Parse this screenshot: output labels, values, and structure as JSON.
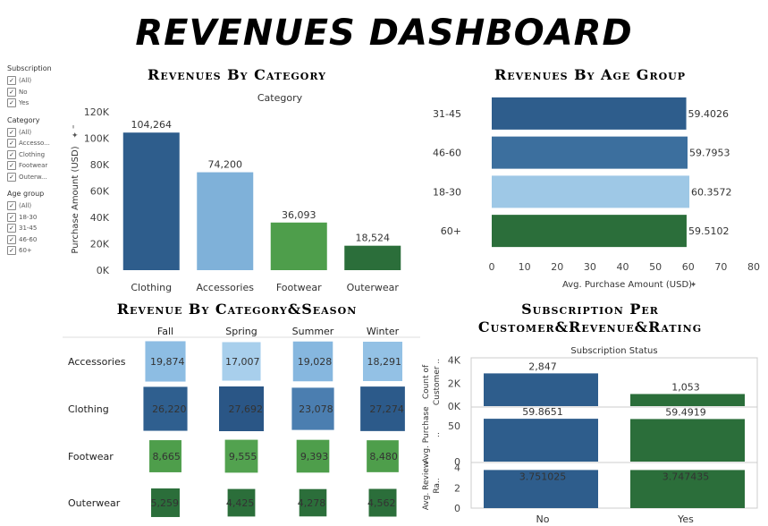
{
  "dashboard_title": "REVENUES DASHBOARD",
  "filters": [
    {
      "title": "Subscription",
      "items": [
        "(All)",
        "No",
        "Yes"
      ]
    },
    {
      "title": "Category",
      "items": [
        "(All)",
        "Accesso...",
        "Clothing",
        "Footwear",
        "Outerw..."
      ]
    },
    {
      "title": "Age group",
      "items": [
        "(All)",
        "18-30",
        "31-45",
        "46-60",
        "60+"
      ]
    }
  ],
  "charts": {
    "category": {
      "title": "Revenues By Category",
      "header": "Category",
      "ylabel": "Purchase Amount (USD)",
      "ylabel_icon": "pin-icon"
    },
    "age": {
      "title": "Revenues By Age Group",
      "xlabel": "Avg. Purchase Amount (USD)",
      "xlabel_icon": "pin-icon"
    },
    "season": {
      "title": "Revenue By Category&Season"
    },
    "subscription": {
      "title_line1": "Subscription Per",
      "title_line2": "Customer&Revenue&Rating",
      "header": "Subscription Status",
      "row_labels": [
        "Count of Customer ..",
        "Avg. Purchase ..",
        "Avg. Review Ra.."
      ]
    }
  },
  "chart_data": [
    {
      "type": "bar",
      "title": "Revenues By Category",
      "xlabel": "Category",
      "ylabel": "Purchase Amount (USD)",
      "categories": [
        "Clothing",
        "Accessories",
        "Footwear",
        "Outerwear"
      ],
      "values": [
        104264,
        74200,
        36093,
        18524
      ],
      "value_labels": [
        "104,264",
        "74,200",
        "36,093",
        "18,524"
      ],
      "colors": [
        "#2e5d8c",
        "#7fb1d9",
        "#4e9e4b",
        "#2b6e3a"
      ],
      "ylim": [
        0,
        120000
      ],
      "yticks": [
        0,
        20000,
        40000,
        60000,
        80000,
        100000,
        120000
      ],
      "ytick_labels": [
        "0K",
        "20K",
        "40K",
        "60K",
        "80K",
        "100K",
        "120K"
      ]
    },
    {
      "type": "bar",
      "orientation": "horizontal",
      "title": "Revenues By Age Group",
      "xlabel": "Avg. Purchase Amount (USD)",
      "categories": [
        "31-45",
        "46-60",
        "18-30",
        "60+"
      ],
      "values": [
        59.4026,
        59.7953,
        60.3572,
        59.5102
      ],
      "value_labels": [
        "59.4026",
        "59.7953",
        "60.3572",
        "59.5102"
      ],
      "colors": [
        "#2e5d8c",
        "#3c6f9e",
        "#9ec8e6",
        "#2b6e3a"
      ],
      "xlim": [
        0,
        80
      ],
      "xticks": [
        0,
        10,
        20,
        30,
        40,
        50,
        60,
        70,
        80
      ]
    },
    {
      "type": "heatmap",
      "title": "Revenue By Category&Season",
      "columns": [
        "Fall",
        "Spring",
        "Summer",
        "Winter"
      ],
      "rows": [
        "Accessories",
        "Clothing",
        "Footwear",
        "Outerwear"
      ],
      "values": [
        [
          19874,
          17007,
          19028,
          18291
        ],
        [
          26220,
          27692,
          23078,
          27274
        ],
        [
          8665,
          9555,
          9393,
          8480
        ],
        [
          5259,
          4425,
          4278,
          4562
        ]
      ],
      "value_labels": [
        [
          "19,874",
          "17,007",
          "19,028",
          "18,291"
        ],
        [
          "26,220",
          "27,692",
          "23,078",
          "27,274"
        ],
        [
          "8,665",
          "9,555",
          "9,393",
          "8,480"
        ],
        [
          "5,259",
          "4,425",
          "4,278",
          "4,562"
        ]
      ],
      "cell_colors": [
        [
          "#8dbde3",
          "#a8cfec",
          "#86b7df",
          "#93c1e5"
        ],
        [
          "#2f5f8f",
          "#2a5686",
          "#4b7eb0",
          "#2c5a8a"
        ],
        [
          "#4e9e4b",
          "#52a24f",
          "#4e9e4b",
          "#4e9e4b"
        ],
        [
          "#2b6e3a",
          "#2b6e3a",
          "#2b6e3a",
          "#2b6e3a"
        ]
      ]
    },
    {
      "type": "bar",
      "title": "Subscription Per Customer&Revenue&Rating",
      "xlabel": "Subscription Status",
      "categories": [
        "No",
        "Yes"
      ],
      "colors": [
        "#2e5d8c",
        "#2b6e3a"
      ],
      "series": [
        {
          "name": "Count of Customer ..",
          "values": [
            2847,
            1053
          ],
          "value_labels": [
            "2,847",
            "1,053"
          ],
          "ylim": [
            0,
            4200
          ],
          "yticks": [
            0,
            2000,
            4000
          ],
          "ytick_labels": [
            "0K",
            "2K",
            "4K"
          ]
        },
        {
          "name": "Avg. Purchase ..",
          "values": [
            59.8651,
            59.4919
          ],
          "value_labels": [
            "59.8651",
            "59.4919"
          ],
          "ylim": [
            0,
            75
          ],
          "yticks": [
            0,
            50
          ],
          "ytick_labels": [
            "0",
            "50"
          ]
        },
        {
          "name": "Avg. Review Ra..",
          "values": [
            3.751025,
            3.747435
          ],
          "value_labels": [
            "3.751025",
            "3.747435"
          ],
          "ylim": [
            0,
            4.4
          ],
          "yticks": [
            0,
            2,
            4
          ],
          "ytick_labels": [
            "0",
            "2",
            "4"
          ]
        }
      ]
    }
  ]
}
